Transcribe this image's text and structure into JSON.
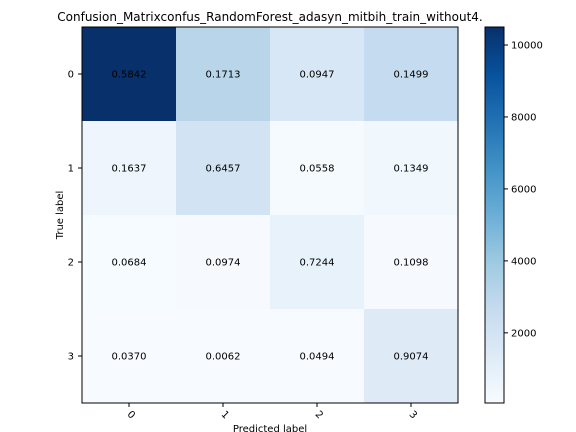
{
  "chart_data": {
    "type": "heatmap",
    "title": "Confusion_Matrixconfus_RandomForest_adasyn_mitbih_train_without4.",
    "xlabel": "Predicted label",
    "ylabel": "True label",
    "x_tick_labels": [
      "0",
      "1",
      "2",
      "3"
    ],
    "y_tick_labels": [
      "0",
      "1",
      "2",
      "3"
    ],
    "cell_labels": [
      [
        "0.5842",
        "0.1713",
        "0.0947",
        "0.1499"
      ],
      [
        "0.1637",
        "0.6457",
        "0.0558",
        "0.1349"
      ],
      [
        "0.0684",
        "0.0974",
        "0.7244",
        "0.1098"
      ],
      [
        "0.0370",
        "0.0062",
        "0.0494",
        "0.9074"
      ]
    ],
    "colormap": "Blues",
    "colorbar": {
      "range": [
        50,
        10500
      ],
      "ticks": [
        2000,
        4000,
        6000,
        8000,
        10000
      ],
      "tick_labels": [
        "2000",
        "4000",
        "6000",
        "8000",
        "10000"
      ]
    },
    "cell_counts_estimated": [
      [
        10500,
        3100,
        1700,
        2700
      ],
      [
        500,
        2000,
        170,
        410
      ],
      [
        80,
        110,
        820,
        125
      ],
      [
        60,
        10,
        75,
        1380
      ]
    ],
    "colors": {
      "text_on_light": "#000000",
      "axis": "#000000"
    }
  }
}
